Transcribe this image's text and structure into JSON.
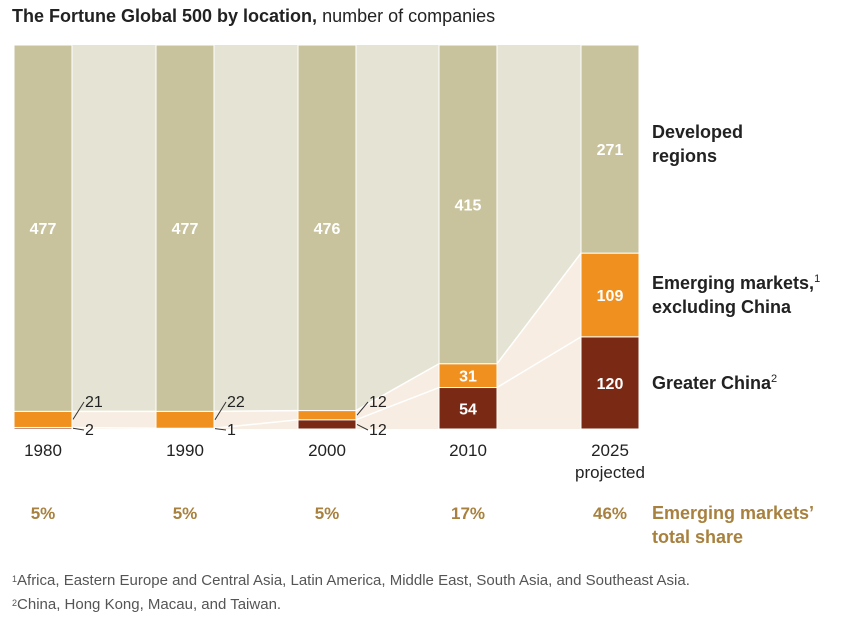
{
  "title": {
    "bold": "The Fortune Global 500 by location,",
    "normal": "number of companies"
  },
  "chart_data": {
    "type": "bar",
    "stacked": true,
    "categories": [
      "1980",
      "1990",
      "2000",
      "2010",
      "2025"
    ],
    "category_sublabels": [
      "",
      "",
      "",
      "",
      "projected"
    ],
    "series": [
      {
        "name": "Greater China",
        "sup": "2",
        "values": [
          2,
          1,
          12,
          54,
          120
        ]
      },
      {
        "name": "Emerging markets, excluding China",
        "sup": "1",
        "values": [
          21,
          22,
          12,
          31,
          109
        ]
      },
      {
        "name": "Developed regions",
        "values": [
          477,
          477,
          476,
          415,
          271
        ]
      }
    ],
    "series_label_lines": [
      [
        "Greater China"
      ],
      [
        "Emerging markets,",
        "excluding China"
      ],
      [
        "Developed",
        "regions"
      ]
    ],
    "ylim": [
      0,
      500
    ],
    "share_label": [
      "Emerging markets’",
      "total share"
    ],
    "share_values": [
      "5%",
      "5%",
      "5%",
      "17%",
      "46%"
    ],
    "colors": {
      "developed": "#c8c39c",
      "emerging": "#f0901e",
      "china": "#7a2a14",
      "band_developed": "#e5e3d3",
      "band_emerging": "#f7ede2",
      "share_text": "#a8813f"
    }
  },
  "footnotes": [
    {
      "mark": "1",
      "text": "Africa, Eastern Europe and Central Asia, Latin America, Middle East, South Asia, and Southeast Asia."
    },
    {
      "mark": "2",
      "text": "China, Hong Kong, Macau, and Taiwan."
    }
  ]
}
